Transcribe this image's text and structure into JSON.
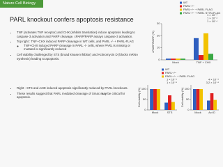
{
  "header": {
    "journal": "Nature Cell Biology",
    "title": "PARL knockout confers apoptosis resistance"
  },
  "bullets": {
    "group1": [
      "TNF (activates TNF receptor) and CHX (inhibits translation) induce apoptosis leading to caspase-3 activation and PARP cleavage. cPARP/PARP assays caspase-3 activation.",
      "Top right : TNF+CHX induced PARP cleavage in WT cells, and PARL -/- + PARL-FLAG",
      "Cell viability challenged by STS (broad kinase inhibitor) and Actinomycin D (blocks mRNA synthesis) leading to apoptosis."
    ],
    "sub1": "TNF+CHX induced PARP cleavage in PARL -/- cells, where PARL is missing or mutated is significantly reduced",
    "group2": [
      "Right - STS and ActD induced apoptosis significantly reduced by PARL knockouts."
    ],
    "last": [
      "These results suggest that PARL mediated cleavage of Smac ",
      "may",
      " be critical for apoptosis."
    ]
  },
  "chart_data": [
    {
      "type": "bar",
      "y_label": "cPARP/PARP (%)",
      "categories": [
        "Mock",
        "TNF + CHX"
      ],
      "series": [
        {
          "name": "WT",
          "color": "#2f5fbf",
          "values": [
            1,
            18
          ]
        },
        {
          "name": "PARL−/−",
          "color": "#e02020",
          "values": [
            1,
            4
          ]
        },
        {
          "name": "PARL−/− + PARL FLAG",
          "color": "#f2c200",
          "values": [
            1,
            22
          ]
        },
        {
          "name": "PARL−/− + PARL S77N-FLAG",
          "color": "#3aa845",
          "values": [
            1,
            5
          ]
        }
      ],
      "ylim": [
        0,
        30
      ],
      "yticks": [
        0,
        10,
        20,
        30
      ],
      "legend": "top",
      "annotations": [
        "1 × 10⁻⁴",
        "1 × 10⁻⁴",
        "1 × 10⁻⁴"
      ]
    },
    {
      "type": "bar",
      "y_label": "Cell viability (%)",
      "categories": [
        "Mock",
        "STS"
      ],
      "series": [
        {
          "name": "WT",
          "color": "#2f5fbf",
          "values": [
            100,
            35
          ]
        },
        {
          "name": "PARL−/−",
          "color": "#e02020",
          "values": [
            100,
            70
          ]
        },
        {
          "name": "PARL−/− + PARL FLAG",
          "color": "#f2c200",
          "values": [
            100,
            38
          ]
        }
      ],
      "ylim": [
        0,
        120
      ],
      "yticks": [
        0,
        50,
        100
      ],
      "legend": "top",
      "annotations": [
        "1 × 10⁻⁴",
        "1 × 10⁻⁴"
      ]
    },
    {
      "type": "bar",
      "y_label": "Cell viability (%)",
      "categories": [
        "Mock",
        "Act D"
      ],
      "series": [
        {
          "name": "WT",
          "color": "#2f5fbf",
          "values": [
            100,
            45
          ]
        },
        {
          "name": "PARL−/−",
          "color": "#e02020",
          "values": [
            100,
            80
          ]
        },
        {
          "name": "PARL−/− + PARL FLAG",
          "color": "#f2c200",
          "values": [
            100,
            48
          ]
        }
      ],
      "ylim": [
        0,
        120
      ],
      "yticks": [
        0,
        50,
        100
      ],
      "annotations": [
        "3.2 × 10⁻⁴",
        "4 × 10⁻⁴"
      ]
    }
  ]
}
